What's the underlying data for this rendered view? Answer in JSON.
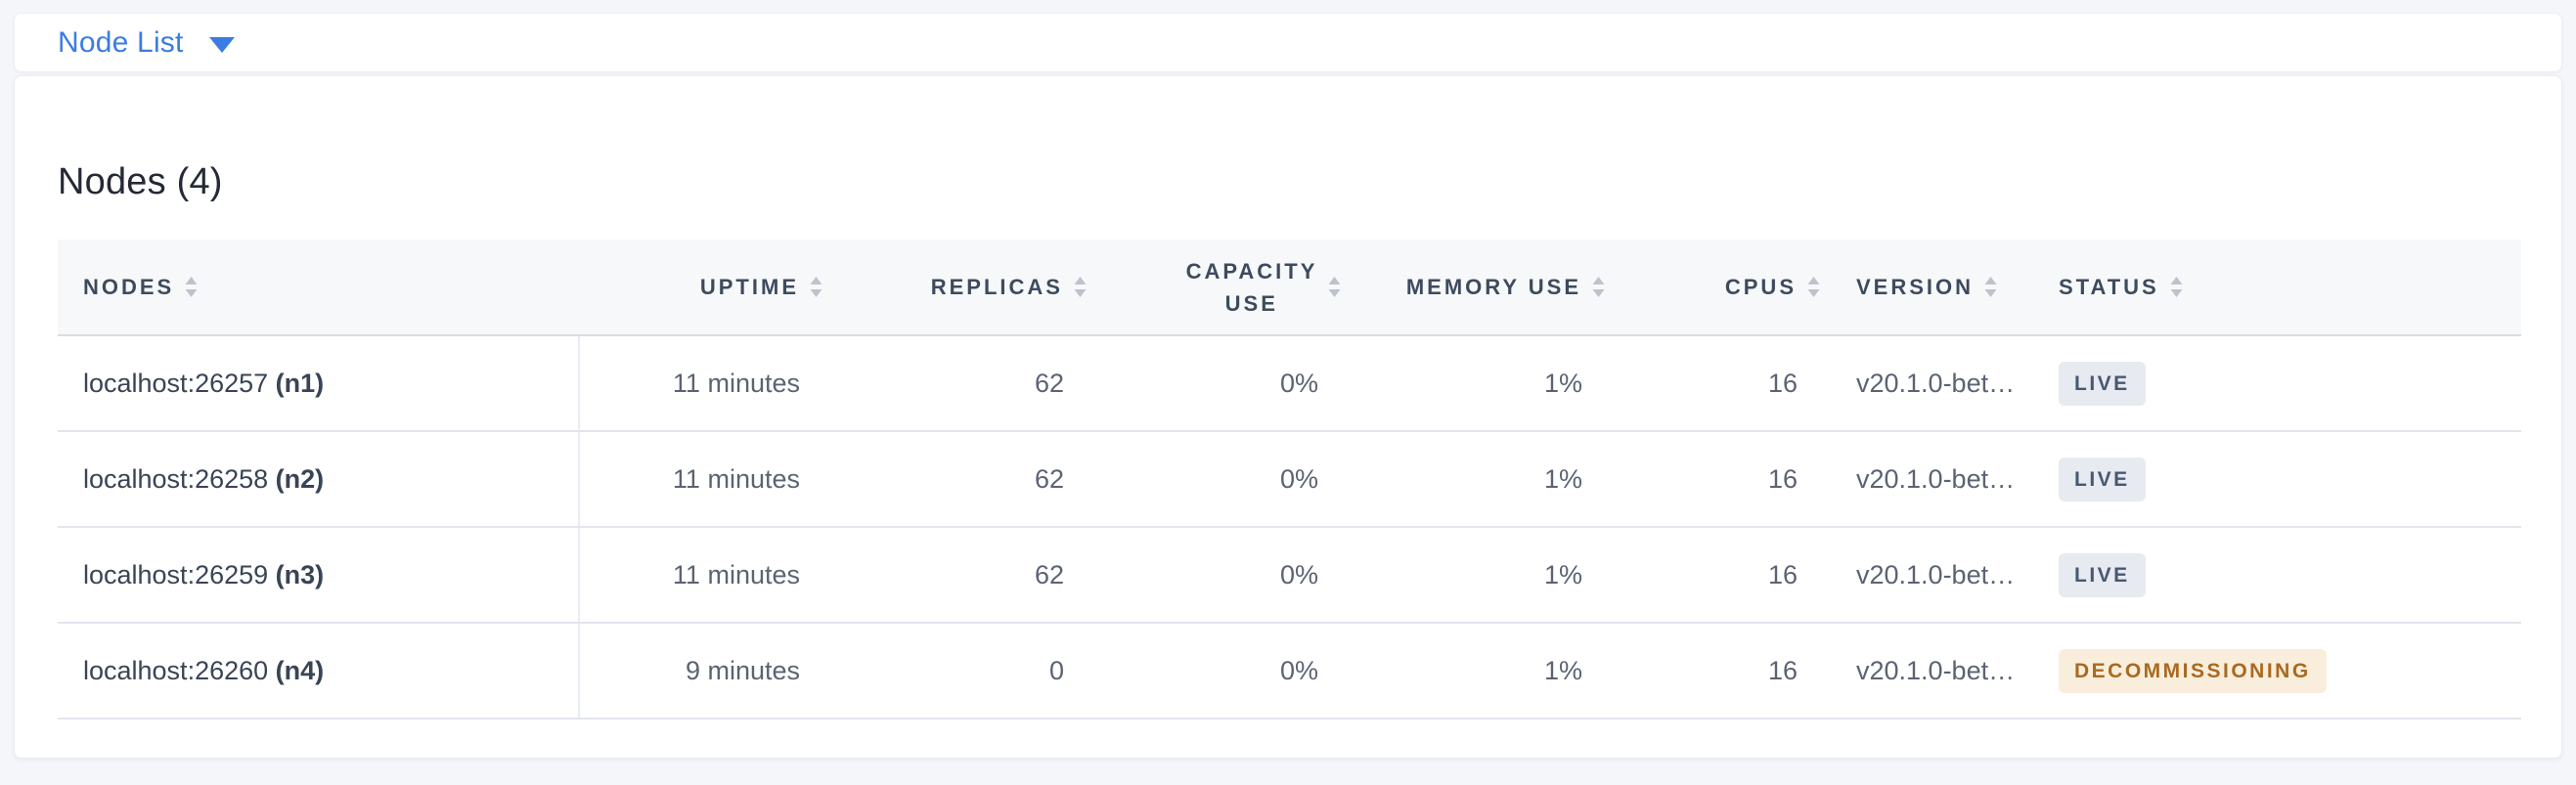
{
  "header": {
    "view_label": "Node List"
  },
  "panel": {
    "title": "Nodes (4)"
  },
  "colors": {
    "accent_blue": "#3b7ce2",
    "live_badge_bg": "#e8eaf1",
    "live_badge_text": "#475872",
    "decommissioning_badge_bg": "#f9eedb",
    "decommissioning_badge_text": "#a96921"
  },
  "icons": {
    "view_selector": "caret-down",
    "column_sort": "sort-arrows"
  },
  "table": {
    "columns": [
      "NODES",
      "UPTIME",
      "REPLICAS",
      "CAPACITY USE",
      "MEMORY USE",
      "CPUS",
      "VERSION",
      "STATUS"
    ],
    "rows": [
      {
        "node": {
          "address": "localhost:26257",
          "id": "(n1)"
        },
        "uptime": "11 minutes",
        "replicas": "62",
        "capacity_use": "0%",
        "memory_use": "1%",
        "cpus": "16",
        "version": "v20.1.0-bet…",
        "status": {
          "label": "LIVE",
          "type": "live"
        }
      },
      {
        "node": {
          "address": "localhost:26258",
          "id": "(n2)"
        },
        "uptime": "11 minutes",
        "replicas": "62",
        "capacity_use": "0%",
        "memory_use": "1%",
        "cpus": "16",
        "version": "v20.1.0-bet…",
        "status": {
          "label": "LIVE",
          "type": "live"
        }
      },
      {
        "node": {
          "address": "localhost:26259",
          "id": "(n3)"
        },
        "uptime": "11 minutes",
        "replicas": "62",
        "capacity_use": "0%",
        "memory_use": "1%",
        "cpus": "16",
        "version": "v20.1.0-bet…",
        "status": {
          "label": "LIVE",
          "type": "live"
        }
      },
      {
        "node": {
          "address": "localhost:26260",
          "id": "(n4)"
        },
        "uptime": "9 minutes",
        "replicas": "0",
        "capacity_use": "0%",
        "memory_use": "1%",
        "cpus": "16",
        "version": "v20.1.0-bet…",
        "status": {
          "label": "DECOMMISSIONING",
          "type": "decommissioning"
        }
      }
    ]
  }
}
